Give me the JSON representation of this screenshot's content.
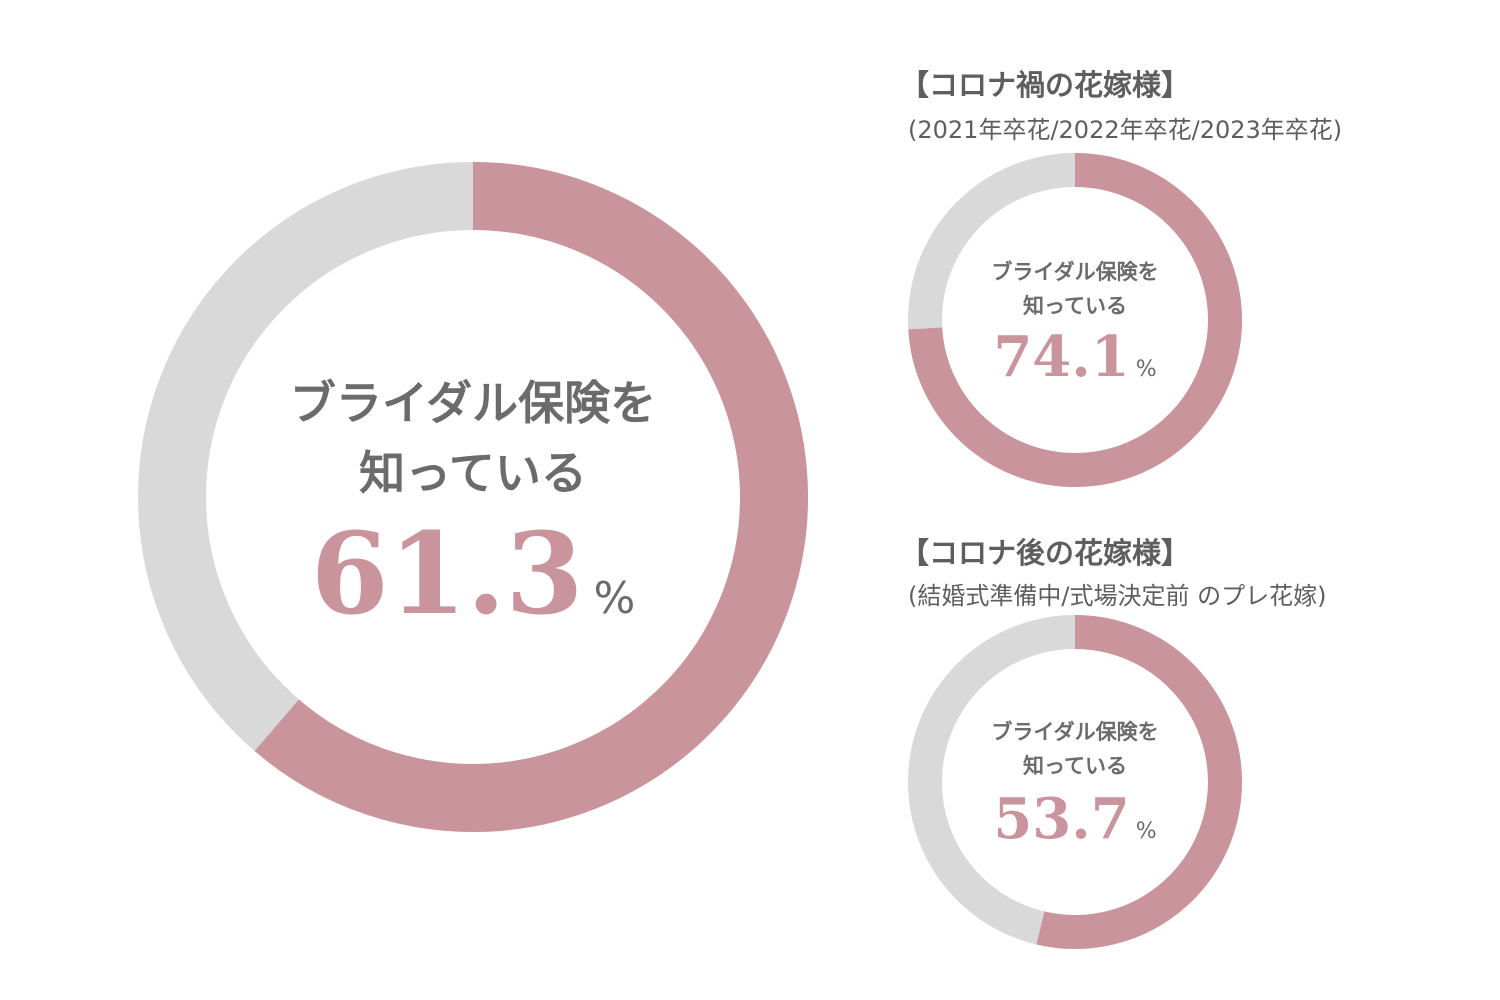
{
  "colors": {
    "accent": "#c9949c",
    "track": "#d9d9d9",
    "text": "#6b6b6b"
  },
  "chart_data": [
    {
      "type": "pie",
      "id": "overall",
      "label": "ブライダル保険を知っている",
      "label_lines": [
        "ブライダル保険を",
        "知っている"
      ],
      "value": 61.3,
      "unit": "%",
      "remainder": 38.7
    },
    {
      "type": "pie",
      "id": "corona-during",
      "group_title": "【コロナ禍の花嫁様】",
      "group_subtitle": "(2021年卒花/2022年卒花/2023年卒花)",
      "label": "ブライダル保険を知っている",
      "label_lines": [
        "ブライダル保険を",
        "知っている"
      ],
      "value": 74.1,
      "unit": "%",
      "remainder": 25.9
    },
    {
      "type": "pie",
      "id": "corona-after",
      "group_title": "【コロナ後の花嫁様】",
      "group_subtitle": "(結婚式準備中/式場決定前 のプレ花嫁)",
      "label": "ブライダル保険を知っている",
      "label_lines": [
        "ブライダル保険を",
        "知っている"
      ],
      "value": 53.7,
      "unit": "%",
      "remainder": 46.3
    }
  ]
}
